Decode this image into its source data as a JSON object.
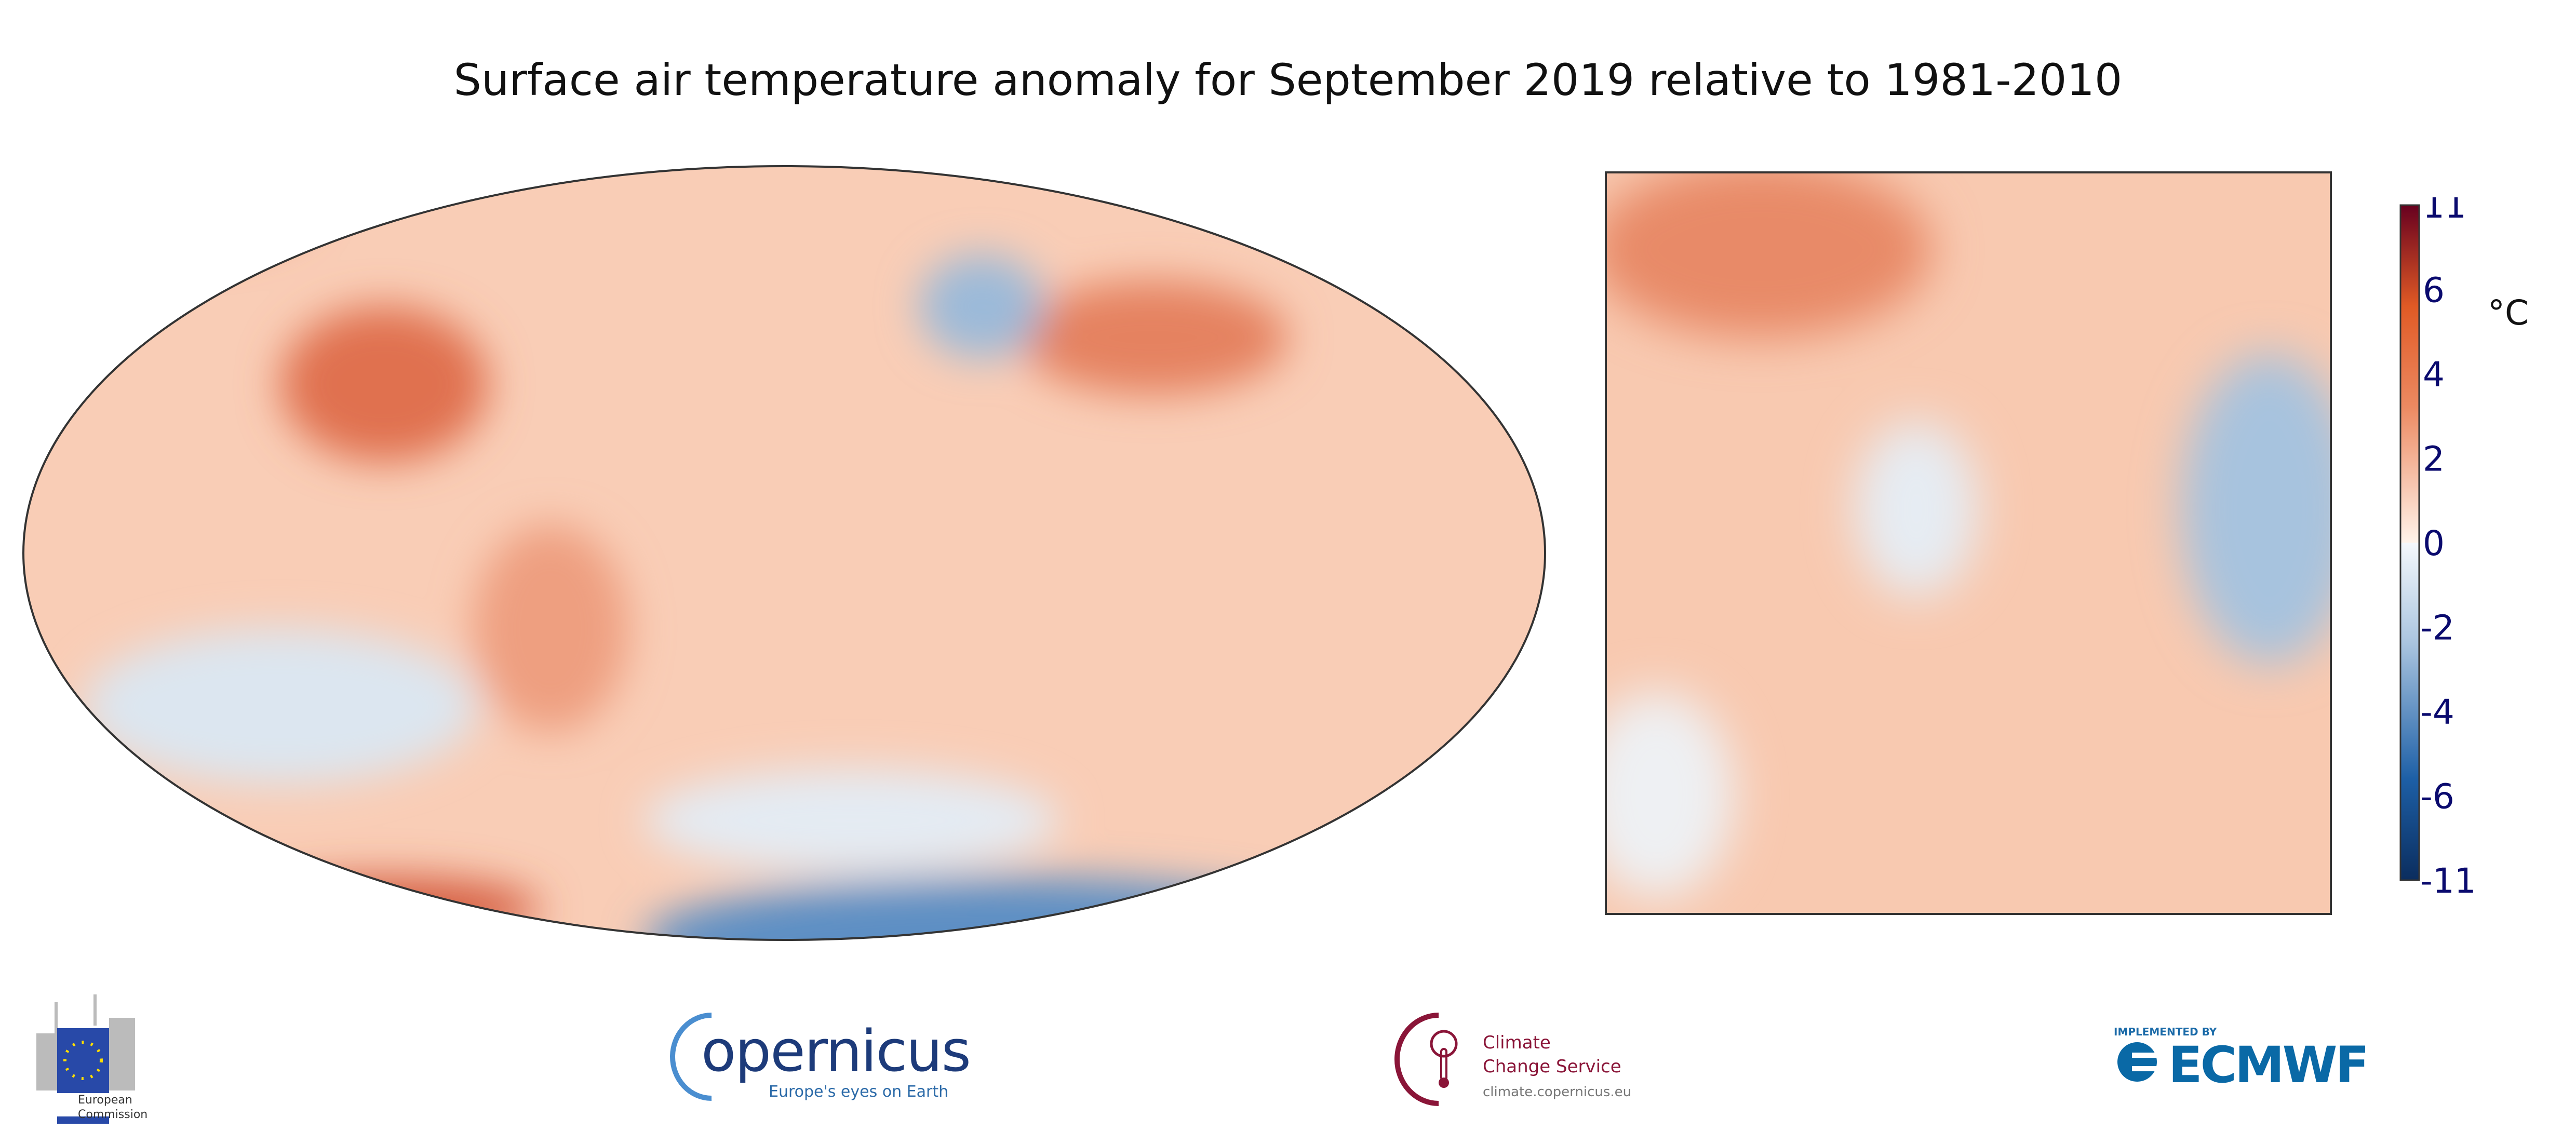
{
  "chart_data": {
    "type": "heatmap",
    "title": "Surface air temperature anomaly for September 2019 relative to 1981-2010",
    "panels": [
      "global map (Robinson projection)",
      "Europe map"
    ],
    "colorbar": {
      "ticks": [
        "11",
        "6",
        "4",
        "2",
        "0",
        "-2",
        "-4",
        "-6",
        "-11"
      ],
      "tick_values": [
        11,
        6,
        4,
        2,
        0,
        -2,
        -4,
        -6,
        -11
      ],
      "unit": "°C",
      "range": [
        -11,
        11
      ],
      "colormap": [
        "#0a3470",
        "#2166ac",
        "#4393c3",
        "#92c5de",
        "#d1e5f0",
        "#f7f7f7",
        "#fddbc7",
        "#f4a582",
        "#d6604d",
        "#b2182b",
        "#67001f"
      ]
    }
  },
  "logos": {
    "ec": {
      "line1": "European",
      "line2": "Commission"
    },
    "copernicus": {
      "word": "opernicus",
      "tagline": "Europe's eyes on Earth"
    },
    "c3s": {
      "line1": "Climate",
      "line2": "Change Service",
      "url": "climate.copernicus.eu"
    },
    "ecmwf": {
      "implemented": "IMPLEMENTED BY",
      "word": "ECMWF"
    }
  }
}
